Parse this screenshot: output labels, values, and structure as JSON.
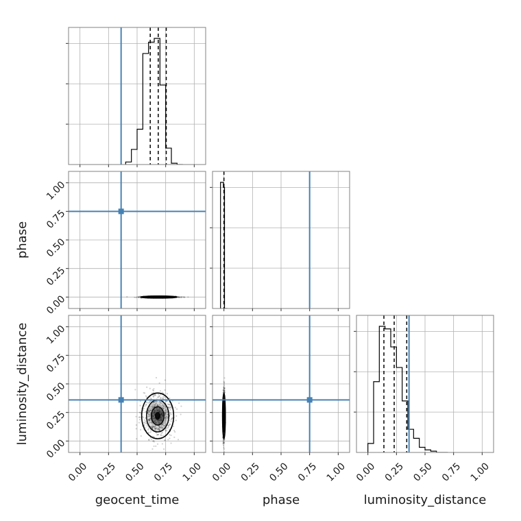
{
  "chart_data": {
    "type": "corner",
    "parameters": [
      "geocent_time",
      "phase",
      "luminosity_distance"
    ],
    "axis_range": [
      -0.1,
      1.1
    ],
    "tick_values": [
      0.0,
      0.25,
      0.5,
      0.75,
      1.0
    ],
    "tick_labels": [
      "0.00",
      "0.25",
      "0.50",
      "0.75",
      "1.00"
    ],
    "truths": {
      "geocent_time": 0.36,
      "phase": 0.75,
      "luminosity_distance": 0.36
    },
    "quantiles": {
      "geocent_time": [
        0.615,
        0.685,
        0.755
      ],
      "phase": [
        0.0
      ],
      "luminosity_distance": [
        0.14,
        0.23,
        0.34
      ]
    },
    "histograms": {
      "geocent_time": {
        "edges": [
          0.4,
          0.45,
          0.5,
          0.55,
          0.6,
          0.65,
          0.7,
          0.75,
          0.8,
          0.85,
          0.9
        ],
        "values": [
          0.02,
          0.12,
          0.28,
          0.88,
          0.97,
          1.0,
          0.63,
          0.13,
          0.01,
          0.0
        ]
      },
      "phase": {
        "edges": [
          -0.03,
          -0.005,
          0.005,
          0.03
        ],
        "values": [
          1.0,
          0.96,
          0.0
        ]
      },
      "luminosity_distance": {
        "edges": [
          0.0,
          0.05,
          0.1,
          0.15,
          0.2,
          0.25,
          0.3,
          0.35,
          0.4,
          0.45,
          0.5,
          0.55,
          0.6,
          0.65,
          0.7
        ],
        "values": [
          0.07,
          0.55,
          0.98,
          0.96,
          0.82,
          0.66,
          0.4,
          0.18,
          0.11,
          0.04,
          0.02,
          0.01,
          0.0,
          0.0
        ]
      }
    },
    "scatter": {
      "geocent_time_vs_phase": {
        "x_center": 0.69,
        "x_spread": 0.08,
        "y_center": 0.0,
        "y_spread": 0.003
      },
      "geocent_time_vs_luminosity_distance": {
        "x_center": 0.68,
        "x_spread": 0.07,
        "y_center": 0.22,
        "y_spread": 0.1
      },
      "phase_vs_luminosity_distance": {
        "x_center": 0.0,
        "x_spread": 0.004,
        "y_center": 0.22,
        "y_spread": 0.1
      }
    },
    "grid": true
  },
  "colors": {
    "truth": "#4682b4",
    "hist": "#000000",
    "grid": "#b0b0b0",
    "frame": "#808080"
  }
}
